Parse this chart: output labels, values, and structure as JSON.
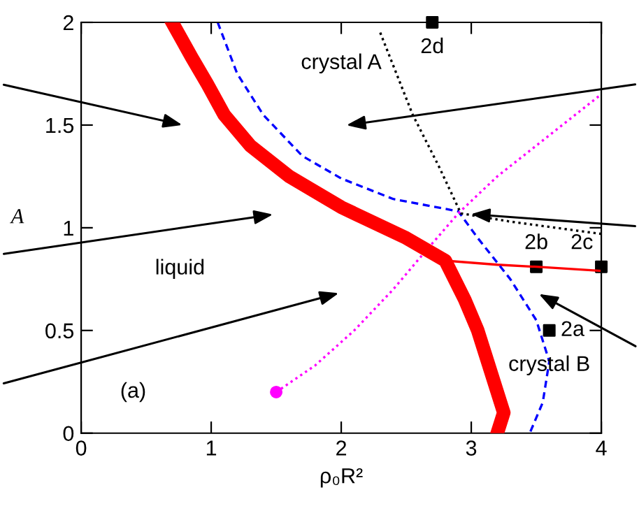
{
  "chart_data": {
    "type": "line",
    "xlabel": "ρ₀R²",
    "ylabel": "A",
    "xlim": [
      0,
      4
    ],
    "ylim": [
      0,
      2
    ],
    "xticks": [
      0,
      1,
      2,
      3,
      4
    ],
    "yticks": [
      0,
      0.5,
      1,
      1.5,
      2
    ],
    "grid": false,
    "legend": false,
    "series": [
      {
        "color": "#ff0000",
        "line_style": "solid",
        "marker": "none",
        "x": [
          0.7,
          0.85,
          0.97,
          1.1,
          1.3,
          1.6,
          2.0,
          2.5,
          2.8,
          2.95,
          3.05,
          3.15,
          3.25,
          3.2
        ],
        "values": [
          2.0,
          1.83,
          1.7,
          1.55,
          1.4,
          1.25,
          1.1,
          0.95,
          0.84,
          0.65,
          0.5,
          0.3,
          0.1,
          0.0
        ]
      },
      {
        "color": "#ff0000",
        "line_style": "solid",
        "marker": "none",
        "x": [
          2.8,
          3.2,
          3.5,
          4.0
        ],
        "values": [
          0.84,
          0.82,
          0.81,
          0.79
        ]
      },
      {
        "color": "#0000ff",
        "line_style": "dashed",
        "marker": "none",
        "x": [
          1.05,
          1.2,
          1.4,
          1.7,
          2.0,
          2.4,
          2.9,
          3.05,
          3.3,
          3.5,
          3.6,
          3.55,
          3.45
        ],
        "values": [
          2.0,
          1.75,
          1.55,
          1.35,
          1.24,
          1.14,
          1.08,
          0.95,
          0.75,
          0.55,
          0.35,
          0.15,
          0.0
        ]
      },
      {
        "color": "#ff00ff",
        "line_style": "dotted",
        "marker": "none",
        "x": [
          1.5,
          1.8,
          2.1,
          2.4,
          2.6,
          2.9,
          3.2,
          3.6,
          4.0
        ],
        "values": [
          0.2,
          0.33,
          0.5,
          0.7,
          0.85,
          1.07,
          1.25,
          1.45,
          1.65
        ]
      },
      {
        "color": "#ff00ff",
        "type": "scatter",
        "marker": "circle",
        "x": [
          1.5
        ],
        "values": [
          0.2
        ]
      },
      {
        "color": "#000000",
        "line_style": "dotted",
        "marker": "none",
        "x": [
          2.3,
          2.55,
          2.75,
          2.92,
          3.3,
          4.0
        ],
        "values": [
          1.95,
          1.55,
          1.3,
          1.07,
          1.03,
          0.97
        ]
      },
      {
        "color": "#000000",
        "type": "scatter",
        "marker": "square",
        "x": [
          2.7,
          3.5,
          4.0,
          3.6
        ],
        "values": [
          2.0,
          0.81,
          0.81,
          0.5
        ]
      }
    ],
    "annotations": [
      {
        "text": "2d",
        "x": 2.7,
        "y": 2.0
      },
      {
        "text": "2b",
        "x": 3.5,
        "y": 0.81
      },
      {
        "text": "2c",
        "x": 4.0,
        "y": 0.81
      },
      {
        "text": "2a",
        "x": 3.6,
        "y": 0.5
      },
      "crystal A",
      "liquid",
      "crystal B",
      "(a)"
    ]
  }
}
